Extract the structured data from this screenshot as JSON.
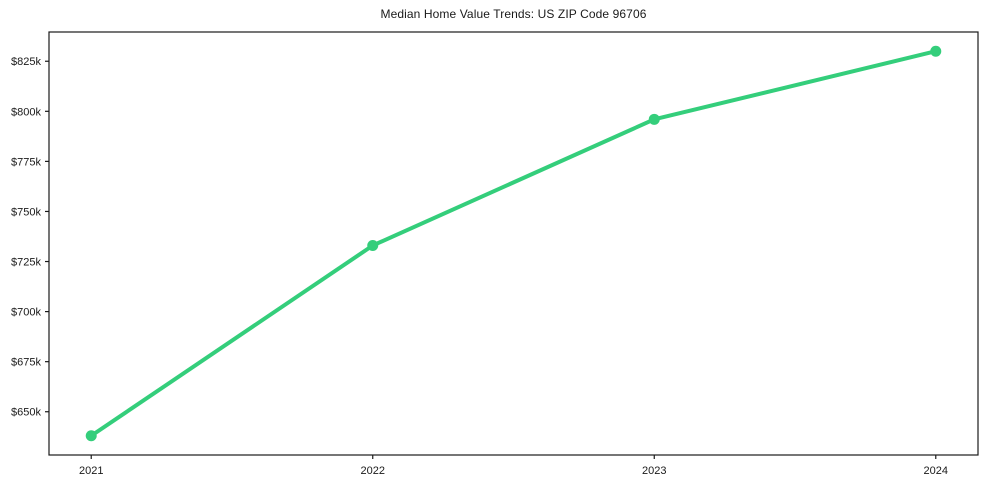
{
  "title": "Median Home Value Trends: US ZIP Code 96706",
  "chart_data": {
    "type": "line",
    "title": "Median Home Value Trends: US ZIP Code 96706",
    "xlabel": "",
    "ylabel": "",
    "categories": [
      "2021",
      "2022",
      "2023",
      "2024"
    ],
    "x": [
      2021,
      2022,
      2023,
      2024
    ],
    "series": [
      {
        "name": "Median Home Value",
        "values": [
          638000,
          733000,
          796000,
          830000
        ]
      }
    ],
    "y_ticks": [
      650000,
      675000,
      700000,
      725000,
      750000,
      775000,
      800000,
      825000
    ],
    "y_tick_labels": [
      "$650k",
      "$675k",
      "$700k",
      "$725k",
      "$750k",
      "$775k",
      "$800k",
      "$825k"
    ],
    "xlim": [
      2020.85,
      2024.15
    ],
    "ylim": [
      628400,
      839600
    ],
    "grid": false,
    "legend": "none",
    "line_color": "#34ce7b",
    "marker": "circle",
    "marker_radius": 5.5,
    "line_width": 4,
    "frame_color": "#1a1a1a"
  }
}
